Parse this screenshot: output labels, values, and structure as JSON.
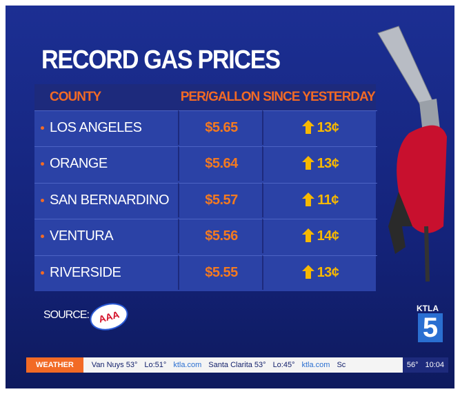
{
  "header": {
    "title": "RECORD GAS PRICES"
  },
  "table": {
    "columns": [
      "COUNTY",
      "PER/GALLON",
      "SINCE YESTERDAY"
    ],
    "rows": [
      [
        "LOS ANGELES",
        "$5.65",
        "13¢"
      ],
      [
        "ORANGE",
        "$5.64",
        "13¢"
      ],
      [
        "SAN BERNARDINO",
        "$5.57",
        "11¢"
      ],
      [
        "VENTURA",
        "$5.56",
        "14¢"
      ],
      [
        "RIVERSIDE",
        "$5.55",
        "13¢"
      ]
    ]
  },
  "source": {
    "label": "SOURCE:",
    "logo": "AAA"
  },
  "logo": {
    "station": "KTLA",
    "channel": "5"
  },
  "ticker": {
    "label": "WEATHER",
    "items": [
      "Van Nuys 53°",
      "Lo:51°",
      "ktla.com",
      "Santa Clarita 53°",
      "Lo:45°",
      "ktla.com",
      "Sc"
    ],
    "temp": "56°",
    "time": "10:04"
  }
}
